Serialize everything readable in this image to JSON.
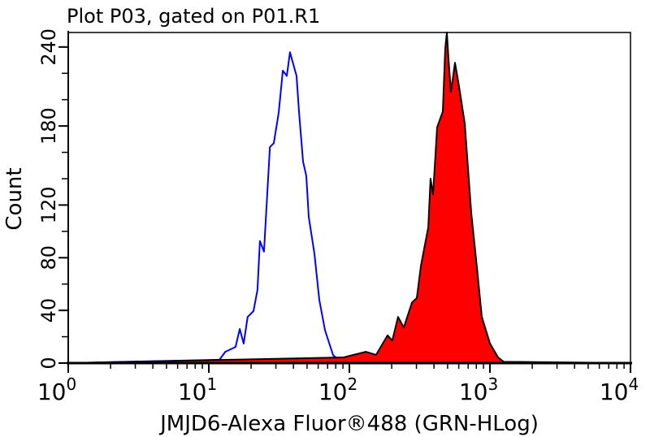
{
  "chart_data": {
    "type": "area",
    "title": "Plot P03, gated on P01.R1",
    "xlabel": "JMJD6-Alexa Fluor®488 (GRN-HLog)",
    "ylabel": "Count",
    "xscale": "log",
    "xlim": [
      1,
      10000
    ],
    "ylim": [
      0,
      251
    ],
    "x_ticks": [
      {
        "base": "10",
        "exp": "0"
      },
      {
        "base": "10",
        "exp": "1"
      },
      {
        "base": "10",
        "exp": "2"
      },
      {
        "base": "10",
        "exp": "3"
      },
      {
        "base": "10",
        "exp": "4"
      }
    ],
    "y_ticks": [
      "0",
      "40",
      "80",
      "120",
      "180",
      "240"
    ],
    "y_tick_values": [
      0,
      40,
      80,
      120,
      180,
      240
    ],
    "grid": false,
    "series": [
      {
        "style": "outline",
        "color": "#0000ff",
        "points": [
          [
            1,
            0
          ],
          [
            11.9,
            2.5
          ],
          [
            13.1,
            8.6
          ],
          [
            15.5,
            12.3
          ],
          [
            16.6,
            25.9
          ],
          [
            17.7,
            14.8
          ],
          [
            18.9,
            35
          ],
          [
            20.8,
            39.5
          ],
          [
            22.2,
            55.6
          ],
          [
            23.1,
            92.6
          ],
          [
            24.7,
            84.6
          ],
          [
            27.2,
            164
          ],
          [
            29,
            167
          ],
          [
            31.4,
            190
          ],
          [
            33.6,
            222
          ],
          [
            35.9,
            218
          ],
          [
            37.8,
            236
          ],
          [
            42.1,
            218
          ],
          [
            43.8,
            191
          ],
          [
            46.8,
            153
          ],
          [
            49.4,
            142
          ],
          [
            51.4,
            111
          ],
          [
            56.4,
            83
          ],
          [
            61.1,
            48
          ],
          [
            67.1,
            25
          ],
          [
            76.6,
            6
          ],
          [
            87.5,
            1
          ],
          [
            10000,
            0
          ]
        ]
      },
      {
        "style": "filled",
        "color": "#ff0000",
        "outline": "#000000",
        "points": [
          [
            1,
            0
          ],
          [
            91,
            4.3
          ],
          [
            131,
            8.6
          ],
          [
            155,
            6.2
          ],
          [
            187,
            21
          ],
          [
            202,
            17
          ],
          [
            222,
            35
          ],
          [
            244,
            27
          ],
          [
            279,
            46
          ],
          [
            302,
            49.4
          ],
          [
            323,
            74
          ],
          [
            364,
            103
          ],
          [
            378,
            140
          ],
          [
            394,
            128
          ],
          [
            421,
            179
          ],
          [
            462,
            191
          ],
          [
            481,
            239
          ],
          [
            494,
            251
          ],
          [
            507,
            231
          ],
          [
            528,
            206
          ],
          [
            564,
            228
          ],
          [
            603,
            210
          ],
          [
            662,
            182
          ],
          [
            736,
            114
          ],
          [
            809,
            72
          ],
          [
            875,
            35
          ],
          [
            1000,
            15
          ],
          [
            1143,
            4.3
          ],
          [
            1254,
            1
          ],
          [
            10000,
            0
          ]
        ]
      }
    ]
  }
}
